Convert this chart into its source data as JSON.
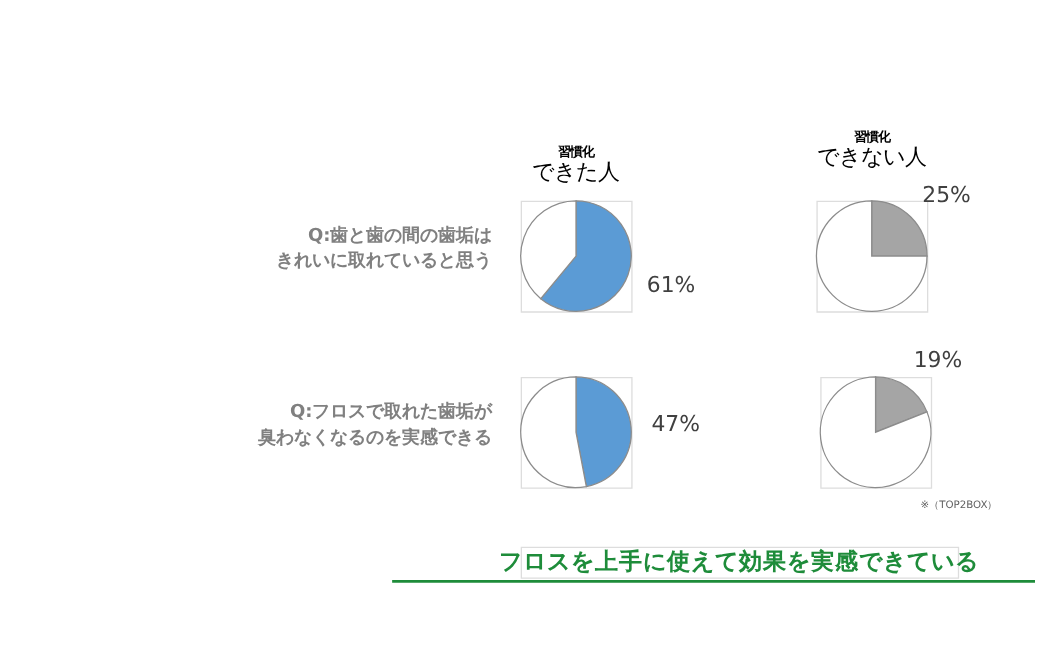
{
  "chart_data": [
    {
      "type": "pie",
      "subtitle": "習慣化",
      "title": "できた人",
      "ylabel": "Q:歯と歯の間の歯垢はきれいに取れていると思う",
      "categories": [
        null,
        null
      ],
      "values": [
        61,
        39
      ],
      "colors": [
        "#5b9bd5",
        "#ffffff"
      ],
      "value_labels": [
        "61%",
        null
      ]
    },
    {
      "type": "pie",
      "subtitle": "習慣化",
      "title": "できない人",
      "categories": [
        null,
        null
      ],
      "values": [
        25,
        75
      ],
      "colors": [
        "#a5a5a5",
        "#ffffff"
      ],
      "value_labels": [
        "25%",
        null
      ]
    },
    {
      "type": "pie",
      "ylabel": "Q:フロスで取れた歯垢が臭わなくなるのを実感できる",
      "categories": [
        null,
        null
      ],
      "values": [
        47,
        53
      ],
      "colors": [
        "#5b9bd5",
        "#ffffff"
      ],
      "value_labels": [
        "47%",
        null
      ]
    },
    {
      "type": "pie",
      "categories": [
        null,
        null
      ],
      "values": [
        19,
        81
      ],
      "colors": [
        "#a5a5a5",
        "#ffffff"
      ],
      "value_labels": [
        "19%",
        null
      ],
      "annotations": [
        "※（TOP2BOX）",
        "フロスを上手に使えて効果を実感できている"
      ]
    }
  ]
}
